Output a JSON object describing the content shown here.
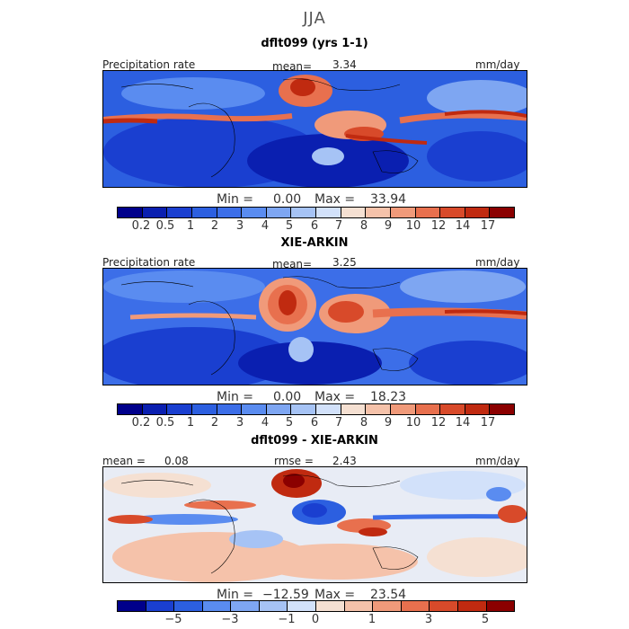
{
  "figure_title": "JJA",
  "panels": [
    {
      "title": "dflt099 (yrs 1-1)",
      "left_label": "Precipitation rate",
      "center_label": "mean=",
      "center_value": "3.34",
      "right_label": "mm/day",
      "min_label": "Min =",
      "min_value": "0.00",
      "max_label": "Max =",
      "max_value": "33.94",
      "colorbar_ticks": [
        "0.2",
        "0.5",
        "1",
        "2",
        "3",
        "4",
        "5",
        "6",
        "7",
        "8",
        "9",
        "10",
        "12",
        "14",
        "17"
      ]
    },
    {
      "title": "XIE-ARKIN",
      "left_label": "Precipitation rate",
      "center_label": "mean=",
      "center_value": "3.25",
      "right_label": "mm/day",
      "min_label": "Min =",
      "min_value": "0.00",
      "max_label": "Max =",
      "max_value": "18.23",
      "colorbar_ticks": [
        "0.2",
        "0.5",
        "1",
        "2",
        "3",
        "4",
        "5",
        "6",
        "7",
        "8",
        "9",
        "10",
        "12",
        "14",
        "17"
      ]
    },
    {
      "title": "dflt099 - XIE-ARKIN",
      "left_label": "mean =",
      "left_value": "0.08",
      "center_label": "rmse =",
      "center_value": "2.43",
      "right_label": "mm/day",
      "min_label": "Min =",
      "min_value": "−12.59",
      "max_label": "Max =",
      "max_value": "23.54",
      "colorbar_ticks": [
        "−5",
        "−3",
        "−1",
        "0",
        "1",
        "3",
        "5"
      ]
    }
  ],
  "colors": {
    "precip_scale": [
      "#00008b",
      "#0a1fb0",
      "#1a3fd0",
      "#2c5fe0",
      "#3c6ee8",
      "#5a8cf0",
      "#7ea6f2",
      "#a6c3f5",
      "#d2e1fa",
      "#f5e0d2",
      "#f5c2aa",
      "#f09a7a",
      "#e8704e",
      "#d84a2a",
      "#c02a10",
      "#8b0000"
    ],
    "diff_scale": [
      "#00008b",
      "#1a3fd0",
      "#2c5fe0",
      "#5a8cf0",
      "#7ea6f2",
      "#a6c3f5",
      "#d2e1fa",
      "#f5e0d2",
      "#f5c2aa",
      "#f09a7a",
      "#e8704e",
      "#d84a2a",
      "#c02a10",
      "#8b0000"
    ],
    "coastline": "#000000"
  }
}
